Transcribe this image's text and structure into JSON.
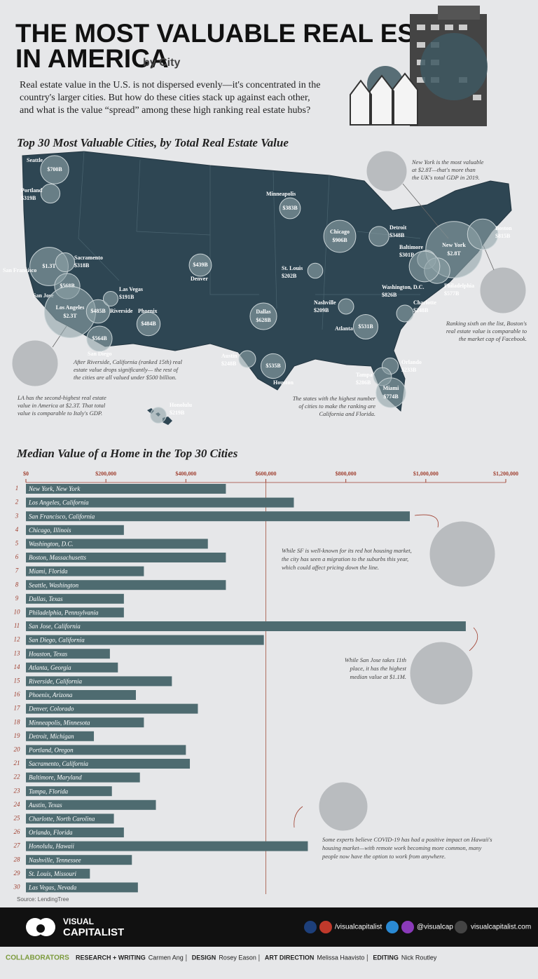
{
  "header": {
    "title_line1": "THE MOST VALUABLE REAL ESTATE",
    "title_line2": "IN AMERICA",
    "subtitle": "by City",
    "intro": [
      "Real estate value in the U.S. is not dispersed evenly—it's concentrated in the",
      "country's larger cities. But how do these cities stack up against each other,",
      "and what is the value “spread” among these high ranking real estate hubs?"
    ]
  },
  "map_title": "Top 30 Most Valuable Cities, by Total Real Estate Value",
  "bar_title": "Median Value of a Home in the Top 30 Cities",
  "chart_data": [
    {
      "type": "bubble-map",
      "categories": [
        "Seattle",
        "Portland",
        "San Francisco",
        "San Jose",
        "Sacramento",
        "Los Angeles",
        "Riverside",
        "San Diego",
        "Las Vegas",
        "Phoenix",
        "Denver",
        "Dallas",
        "Austin",
        "Houston",
        "Minneapolis",
        "Chicago",
        "St. Louis",
        "Detroit",
        "Nashville",
        "Atlanta",
        "New York",
        "Boston",
        "Baltimore",
        "Philadelphia",
        "Washington, D.C.",
        "Charlotte",
        "Orlando",
        "Tampa",
        "Miami",
        "Honolulu"
      ],
      "values": [
        700,
        319,
        1300,
        568,
        318,
        2300,
        485,
        564,
        191,
        484,
        439,
        628,
        248,
        535,
        383,
        906,
        202,
        348,
        209,
        531,
        2800,
        815,
        301,
        577,
        826,
        248,
        233,
        286,
        774,
        219
      ],
      "value_labels": [
        "$700B",
        "$319B",
        "$1.3T",
        "$568B",
        "$318B",
        "$2.3T",
        "$485B",
        "$564B",
        "$191B",
        "$484B",
        "$439B",
        "$628B",
        "$248B",
        "$535B",
        "$383B",
        "$906B",
        "$202B",
        "$348B",
        "$209B",
        "$531B",
        "$2.8T",
        "$815B",
        "$301B",
        "$577B",
        "$826B",
        "$248B",
        "$233B",
        "$286B",
        "$774B",
        "$219B"
      ],
      "color": "#8fa3a8"
    },
    {
      "type": "bar",
      "ranks": [
        1,
        2,
        3,
        4,
        5,
        6,
        7,
        8,
        9,
        10,
        11,
        12,
        13,
        14,
        15,
        16,
        17,
        18,
        19,
        20,
        21,
        22,
        23,
        24,
        25,
        26,
        27,
        28,
        29,
        30
      ],
      "categories": [
        "New York, New York",
        "Los Angeles, California",
        "San Francisco, California",
        "Chicago, Illinois",
        "Washington, D.C.",
        "Boston, Massachusetts",
        "Miami, Florida",
        "Seattle, Washington",
        "Dallas, Texas",
        "Philadelphia, Pennsylvania",
        "San Jose, California",
        "San Diego, California",
        "Houston, Texas",
        "Atlanta, Georgia",
        "Riverside, California",
        "Phoenix, Arizona",
        "Denver, Colorado",
        "Minneapolis, Minnesota",
        "Detroit, Michigan",
        "Portland, Oregon",
        "Sacramento, California",
        "Baltimore, Maryland",
        "Tampa, Florida",
        "Austin, Texas",
        "Charlotte, North Carolina",
        "Orlando, Florida",
        "Honolulu, Hawaii",
        "Nashville, Tennessee",
        "St. Louis, Missouri",
        "Las Vegas, Nevada"
      ],
      "values": [
        500000,
        670000,
        960000,
        245000,
        455000,
        500000,
        295000,
        500000,
        245000,
        245000,
        1100000,
        595000,
        210000,
        230000,
        365000,
        275000,
        430000,
        295000,
        170000,
        400000,
        410000,
        285000,
        215000,
        325000,
        220000,
        245000,
        705000,
        265000,
        160000,
        280000
      ],
      "color": "#4e6b70",
      "xlim": [
        0,
        1200000
      ],
      "xticks": [
        {
          "value": 0,
          "label": "$0"
        },
        {
          "value": 200000,
          "label": "$200,000"
        },
        {
          "value": 400000,
          "label": "$400,000"
        },
        {
          "value": 600000,
          "label": "$600,000"
        },
        {
          "value": 800000,
          "label": "$800,000"
        },
        {
          "value": 1000000,
          "label": "$1,000,000"
        },
        {
          "value": 1200000,
          "label": "$1,200,000"
        }
      ],
      "reference_line": 600000
    }
  ],
  "map_notes": [
    {
      "lines": [
        "New York is the most valuable",
        "at $2.8T—that's more than",
        "the UK's total GDP in 2019."
      ]
    },
    {
      "lines": [
        "Ranking sixth on the list, Boston's",
        "real estate value is comparable to",
        "the market cap of Facebook."
      ]
    },
    {
      "lines": [
        "After Riverside, California (ranked 15th) real",
        "estate value drops significantly— the rest of",
        "the cities are all valued under $500 billion."
      ]
    },
    {
      "lines": [
        "LA has the second-highest real estate",
        "value in America at $2.3T. That total",
        "value is comparable to Italy's GDP."
      ]
    },
    {
      "lines": [
        "The states with the highest number",
        "of cities to make the ranking are",
        "California and Florida."
      ]
    }
  ],
  "bar_notes": [
    {
      "lines": [
        "While SF is well-known for its red hot housing market,",
        "the city has seen a migration to the suburbs this year,",
        "which could affect pricing down the line."
      ]
    },
    {
      "lines": [
        "While San Jose takes 11th",
        "place, it has the highest",
        "median value at $1.1M."
      ]
    },
    {
      "lines": [
        "Some experts believe COVID-19 has had a positive impact on Hawaii's",
        "housing market—with remote work becoming more common, many",
        "people now have the option to work from anywhere."
      ]
    }
  ],
  "source": "Source: LendingTree",
  "footer": {
    "brand1": "VISUAL",
    "brand2": "CAPITALIST",
    "facebook": "/visualcapitalist",
    "twitter": "@visualcap",
    "web": "visualcapitalist.com"
  },
  "credits": {
    "label": "COLLABORATORS",
    "items": [
      {
        "role": "RESEARCH + WRITING",
        "name": "Carmen Ang"
      },
      {
        "role": "DESIGN",
        "name": "Rosey Eason"
      },
      {
        "role": "ART DIRECTION",
        "name": "Melissa Haavisto"
      },
      {
        "role": "EDITING",
        "name": "Nick Routley"
      }
    ]
  }
}
